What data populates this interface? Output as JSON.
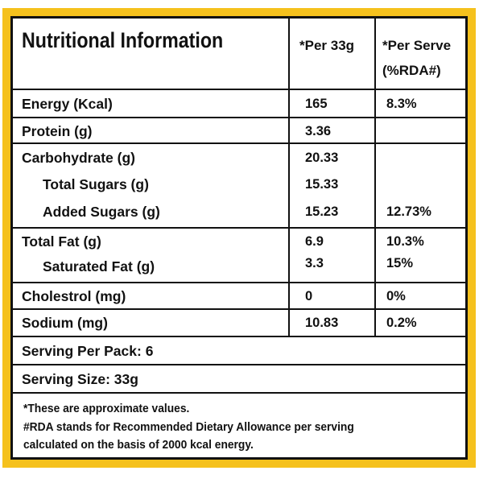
{
  "title": "Nutritional Information",
  "headers": {
    "per_33g": "*Per 33g",
    "per_serve": "*Per Serve",
    "rda": "(%RDA#)"
  },
  "rows": [
    {
      "label": "Energy (Kcal)",
      "per33g": "165",
      "rda": "8.3%"
    },
    {
      "label": "Protein (g)",
      "per33g": "3.36",
      "rda": ""
    },
    {
      "label": "Carbohydrate (g)",
      "per33g": "20.33",
      "rda": ""
    },
    {
      "label": "Total Sugars (g)",
      "per33g": "15.33",
      "rda": ""
    },
    {
      "label": "Added Sugars (g)",
      "per33g": "15.23",
      "rda": "12.73%"
    },
    {
      "label": "Total Fat (g)",
      "per33g": "6.9",
      "rda": "10.3%"
    },
    {
      "label": "Saturated Fat (g)",
      "per33g": "3.3",
      "rda": "15%"
    },
    {
      "label": "Cholestrol (mg)",
      "per33g": "0",
      "rda": "0%"
    },
    {
      "label": "Sodium (mg)",
      "per33g": "10.83",
      "rda": "0.2%"
    }
  ],
  "serving_per_pack": "Serving Per Pack: 6",
  "serving_size": "Serving Size: 33g",
  "notes": [
    "*These are approximate values.",
    "#RDA stands for Recommended Dietary Allowance per serving",
    "calculated on the basis of 2000 kcal energy."
  ],
  "colors": {
    "frame": "#f5c11d",
    "border": "#111111",
    "background": "#ffffff"
  }
}
